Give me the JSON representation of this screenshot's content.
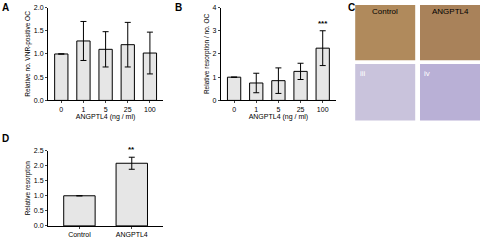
{
  "chart_data": [
    {
      "type": "bar",
      "title": "A",
      "categories": [
        "0",
        "1",
        "5",
        "25",
        "100"
      ],
      "values": [
        1,
        1.28,
        1.1,
        1.2,
        1.02
      ],
      "errors": [
        0,
        0.42,
        0.38,
        0.48,
        0.45
      ],
      "color": "#e6e6e6",
      "xlabel": "ANGPTL4 (ng / ml)",
      "ylabel": "Relative no. VNR-positive OC",
      "ylim": [
        0,
        2
      ],
      "yticks": [
        {
          "value": 0,
          "label": "0.0"
        },
        {
          "value": 0.5,
          "label": "0.5"
        },
        {
          "value": 1,
          "label": "1.0"
        },
        {
          "value": 1.5,
          "label": "1.5"
        },
        {
          "value": 2,
          "label": "2.0"
        }
      ],
      "grid": false
    },
    {
      "type": "bar",
      "title": "B",
      "categories": [
        "0",
        "1",
        "5",
        "25",
        "100"
      ],
      "values": [
        1,
        0.75,
        0.85,
        1.25,
        2.25
      ],
      "errors": [
        0,
        0.42,
        0.55,
        0.35,
        0.75
      ],
      "color": "#e6e6e6",
      "xlabel": "ANGPTL4 (ng / ml)",
      "ylabel": "Relative resorption / no. OC",
      "ylim": [
        0,
        4
      ],
      "yticks": [
        0,
        1,
        2,
        3,
        4
      ],
      "annotations": [
        {
          "category": "100",
          "text": "***"
        }
      ],
      "grid": false
    },
    {
      "type": "image",
      "title": "C",
      "labels": [
        "Control",
        "ANGPTL4"
      ],
      "annotations": [
        "iii",
        "iv"
      ]
    },
    {
      "type": "bar",
      "title": "D",
      "categories": [
        "Control",
        "ANGPTL4"
      ],
      "values": [
        1,
        2.08
      ],
      "errors": [
        0,
        0.2
      ],
      "color": "#e6e6e6",
      "ylabel": "Relative resorption",
      "ylim": [
        0,
        2.5
      ],
      "yticks": [
        {
          "value": 0,
          "label": "0.0"
        },
        {
          "value": 0.5,
          "label": "0.5"
        },
        {
          "value": 1,
          "label": "1.0"
        },
        {
          "value": 1.5,
          "label": "1.5"
        },
        {
          "value": 2,
          "label": "2.0"
        },
        {
          "value": 2.5,
          "label": "2.5"
        }
      ],
      "annotations": [
        {
          "category": "ANGPTL4",
          "text": "**"
        }
      ],
      "grid": false
    }
  ]
}
